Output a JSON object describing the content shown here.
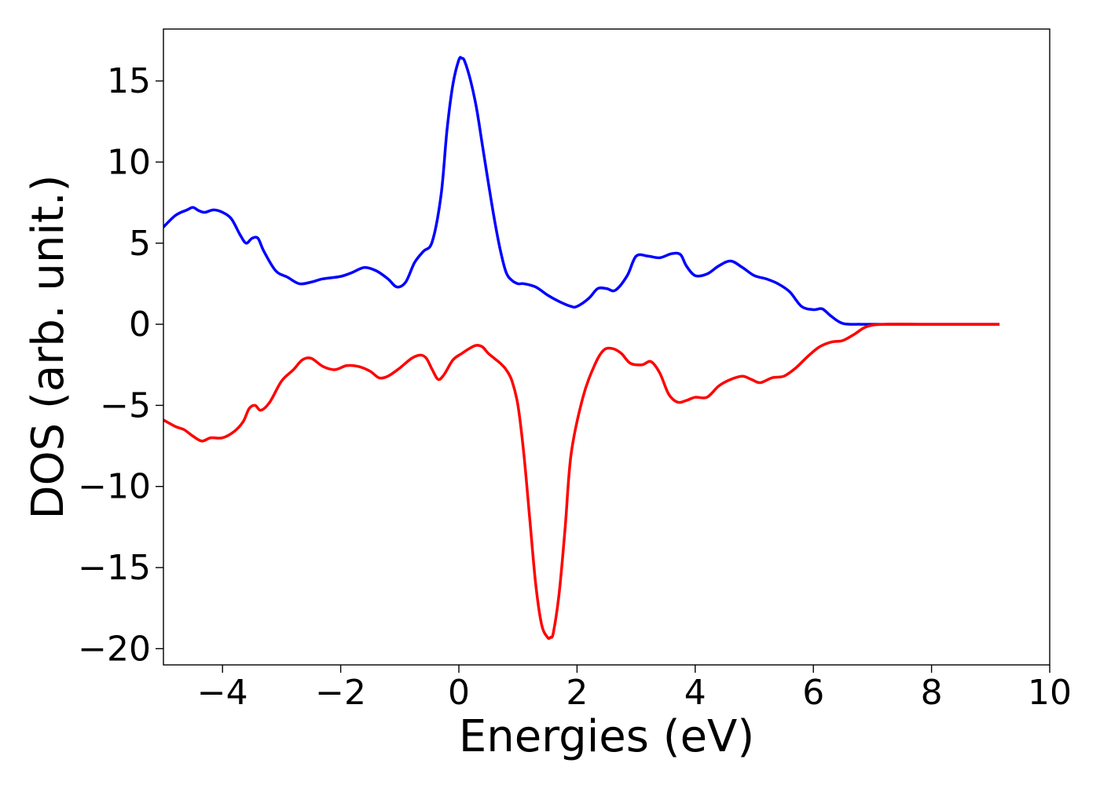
{
  "chart_data": {
    "type": "line",
    "xlabel": "Energies (eV)",
    "ylabel": "DOS (arb. unit.)",
    "xlim": [
      -5,
      10
    ],
    "ylim": [
      -21,
      18.2
    ],
    "x_ticks": [
      -4,
      -2,
      0,
      2,
      4,
      6,
      8,
      10
    ],
    "x_tick_labels": [
      "−4",
      "−2",
      "0",
      "2",
      "4",
      "6",
      "8",
      "10"
    ],
    "y_ticks": [
      15,
      10,
      5,
      0,
      -5,
      -10,
      -15,
      -20
    ],
    "y_tick_labels": [
      "15",
      "10",
      "5",
      "0",
      "−5",
      "−10",
      "−15",
      "−20"
    ],
    "grid": false,
    "series": [
      {
        "color": "#0000ff",
        "x": [
          -5.05,
          -4.8,
          -4.6,
          -4.5,
          -4.4,
          -4.3,
          -4.15,
          -4.0,
          -3.85,
          -3.7,
          -3.6,
          -3.5,
          -3.4,
          -3.3,
          -3.1,
          -2.9,
          -2.7,
          -2.5,
          -2.3,
          -2.0,
          -1.8,
          -1.6,
          -1.4,
          -1.2,
          -1.05,
          -0.9,
          -0.75,
          -0.6,
          -0.45,
          -0.3,
          -0.2,
          -0.1,
          0.0,
          0.05,
          0.1,
          0.2,
          0.3,
          0.4,
          0.5,
          0.6,
          0.7,
          0.8,
          0.9,
          1.0,
          1.1,
          1.3,
          1.5,
          1.7,
          1.9,
          2.0,
          2.2,
          2.35,
          2.5,
          2.65,
          2.85,
          3.0,
          3.2,
          3.4,
          3.6,
          3.75,
          3.85,
          4.0,
          4.2,
          4.4,
          4.6,
          4.8,
          5.0,
          5.2,
          5.4,
          5.6,
          5.8,
          6.0,
          6.15,
          6.3,
          6.5,
          6.8,
          7.0,
          8.0,
          9.15
        ],
        "y": [
          5.8,
          6.7,
          7.05,
          7.2,
          7.0,
          6.9,
          7.05,
          6.9,
          6.5,
          5.5,
          5.0,
          5.3,
          5.3,
          4.5,
          3.3,
          2.9,
          2.5,
          2.6,
          2.8,
          2.95,
          3.2,
          3.5,
          3.3,
          2.8,
          2.3,
          2.6,
          3.8,
          4.5,
          5.1,
          8.0,
          12.0,
          14.8,
          16.3,
          16.4,
          16.2,
          15.0,
          13.3,
          11.0,
          8.7,
          6.5,
          4.6,
          3.2,
          2.7,
          2.5,
          2.5,
          2.3,
          1.8,
          1.4,
          1.1,
          1.1,
          1.6,
          2.2,
          2.2,
          2.1,
          3.0,
          4.2,
          4.2,
          4.1,
          4.35,
          4.3,
          3.6,
          3.0,
          3.1,
          3.6,
          3.9,
          3.5,
          3.0,
          2.8,
          2.5,
          2.0,
          1.1,
          0.9,
          0.95,
          0.5,
          0.05,
          0.0,
          0.0,
          0.0,
          0.0
        ]
      },
      {
        "color": "#ff0000",
        "x": [
          -5.05,
          -4.8,
          -4.65,
          -4.5,
          -4.35,
          -4.2,
          -4.0,
          -3.8,
          -3.65,
          -3.55,
          -3.45,
          -3.35,
          -3.2,
          -3.0,
          -2.8,
          -2.65,
          -2.5,
          -2.3,
          -2.1,
          -1.9,
          -1.7,
          -1.5,
          -1.35,
          -1.2,
          -1.0,
          -0.8,
          -0.65,
          -0.55,
          -0.45,
          -0.35,
          -0.25,
          -0.1,
          0.05,
          0.2,
          0.3,
          0.4,
          0.5,
          0.6,
          0.7,
          0.8,
          0.9,
          1.0,
          1.1,
          1.2,
          1.3,
          1.4,
          1.5,
          1.55,
          1.6,
          1.7,
          1.8,
          1.9,
          2.1,
          2.3,
          2.45,
          2.6,
          2.75,
          2.9,
          3.1,
          3.25,
          3.4,
          3.55,
          3.7,
          3.85,
          4.0,
          4.2,
          4.4,
          4.6,
          4.8,
          4.95,
          5.1,
          5.3,
          5.5,
          5.7,
          5.9,
          6.1,
          6.3,
          6.5,
          6.7,
          6.9,
          7.2,
          8.0,
          9.15
        ],
        "y": [
          -5.8,
          -6.3,
          -6.5,
          -6.9,
          -7.2,
          -7.0,
          -7.0,
          -6.6,
          -6.0,
          -5.2,
          -5.0,
          -5.3,
          -4.8,
          -3.5,
          -2.8,
          -2.2,
          -2.1,
          -2.6,
          -2.8,
          -2.55,
          -2.6,
          -2.9,
          -3.3,
          -3.2,
          -2.7,
          -2.1,
          -1.9,
          -2.1,
          -2.8,
          -3.4,
          -3.1,
          -2.2,
          -1.8,
          -1.45,
          -1.3,
          -1.4,
          -1.8,
          -2.1,
          -2.4,
          -2.8,
          -3.5,
          -5.0,
          -8.0,
          -12.0,
          -16.0,
          -18.5,
          -19.3,
          -19.3,
          -19.0,
          -16.5,
          -12.5,
          -8.0,
          -4.5,
          -2.5,
          -1.6,
          -1.5,
          -1.8,
          -2.4,
          -2.5,
          -2.3,
          -3.0,
          -4.3,
          -4.8,
          -4.7,
          -4.5,
          -4.5,
          -3.8,
          -3.4,
          -3.2,
          -3.4,
          -3.6,
          -3.3,
          -3.2,
          -2.7,
          -2.0,
          -1.4,
          -1.1,
          -1.0,
          -0.6,
          -0.15,
          0.0,
          0.0,
          0.0
        ]
      }
    ]
  }
}
